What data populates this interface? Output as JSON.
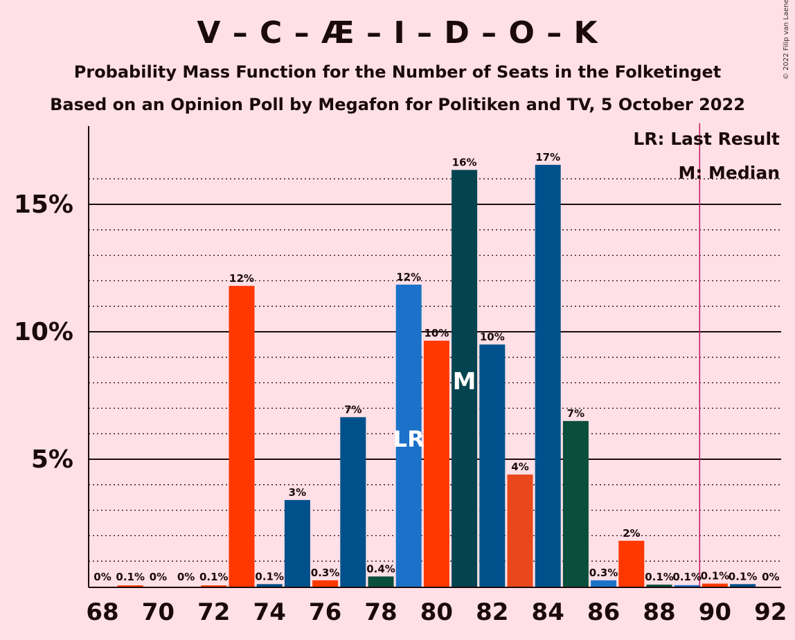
{
  "title": "V – C – Æ – I – D – O – K",
  "subtitle1": "Probability Mass Function for the Number of Seats in the Folketinget",
  "subtitle2": "Based on an Opinion Poll by Megafon for Politiken and TV, 5 October 2022",
  "copyright": "© 2022 Filip van Laenen",
  "legend": {
    "last_result": "LR: Last Result",
    "median": "M: Median"
  },
  "markers": {
    "last_result_label": "LR",
    "median_label": "M"
  },
  "colors": {
    "background": "#FFE0E6",
    "majority_line": "#C0125A",
    "bar_colors": [
      "#FF3800",
      "#00508C",
      "#FF3800",
      "#00508C",
      "#FF3800",
      "#00508C",
      "#0A4E3C",
      "#1B72C8",
      "#FF3800",
      "#044450",
      "#00508C",
      "#E8481C",
      "#00508C",
      "#0A4E3C",
      "#1B72C8",
      "#FF3800",
      "#0A4E3C",
      "#1B72C8",
      "#FF3800",
      "#00508C",
      "#00508C"
    ]
  },
  "chart_data": {
    "type": "bar",
    "x": [
      68,
      69,
      70,
      71,
      72,
      73,
      74,
      75,
      76,
      77,
      78,
      79,
      80,
      81,
      82,
      83,
      84,
      85,
      86,
      87,
      88,
      89,
      90,
      91,
      92
    ],
    "values": [
      0.0,
      0.05,
      0.0,
      0.0,
      0.05,
      11.8,
      0.1,
      3.4,
      0.25,
      6.65,
      0.4,
      11.85,
      9.65,
      16.35,
      9.5,
      4.4,
      16.55,
      6.5,
      0.25,
      1.8,
      0.08,
      0.06,
      0.12,
      0.1,
      0.0
    ],
    "labels": [
      "0%",
      "0.1%",
      "0%",
      "0%",
      "0.1%",
      "12%",
      "0.1%",
      "3%",
      "0.3%",
      "7%",
      "0.4%",
      "12%",
      "10%",
      "16%",
      "10%",
      "4%",
      "17%",
      "7%",
      "0.3%",
      "2%",
      "0.1%",
      "0.1%",
      "0.1%",
      "0.1%",
      "0%"
    ],
    "colors": [
      "#FF3800",
      "#FF3800",
      "#FF3800",
      "#FF3800",
      "#FF3800",
      "#FF3800",
      "#00508C",
      "#00508C",
      "#FF3800",
      "#00508C",
      "#0A4E3C",
      "#1B72C8",
      "#FF3800",
      "#044450",
      "#00508C",
      "#E8481C",
      "#00508C",
      "#0A4E3C",
      "#1B72C8",
      "#FF3800",
      "#0A4E3C",
      "#1B72C8",
      "#FF3800",
      "#00508C",
      "#00508C"
    ],
    "x_tick_labels": [
      "68",
      "70",
      "72",
      "74",
      "76",
      "78",
      "80",
      "82",
      "84",
      "86",
      "88",
      "90",
      "92"
    ],
    "y_tick_labels": [
      "5%",
      "10%",
      "15%"
    ],
    "y_ticks": [
      5,
      10,
      15
    ],
    "ylim": [
      0,
      18
    ],
    "last_result_seat": 79,
    "median_seat": 81,
    "majority_seat": 90,
    "legend_position": "top-right"
  }
}
